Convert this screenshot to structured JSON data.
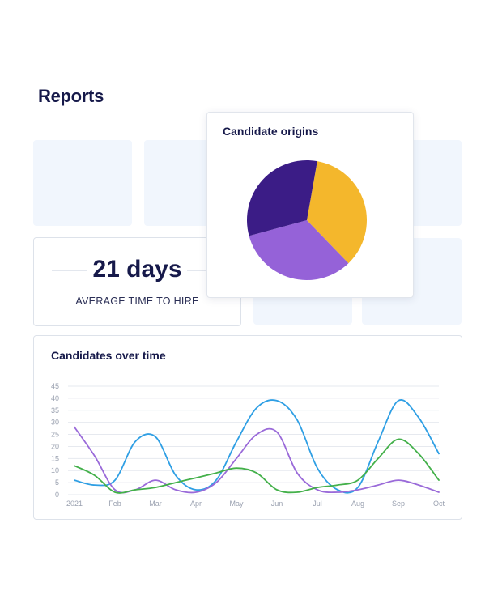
{
  "page": {
    "title": "Reports"
  },
  "stat": {
    "value": "21 days",
    "label": "AVERAGE TIME TO HIRE"
  },
  "origins": {
    "title": "Candidate origins",
    "chart_data": {
      "type": "pie",
      "values": [
        35,
        33,
        32
      ],
      "colors": [
        "#f4b72c",
        "#9562d8",
        "#3b1c86"
      ],
      "start_angle_deg": -80
    }
  },
  "over_time": {
    "title": "Candidates over time",
    "chart_data": {
      "type": "line",
      "categories": [
        "2021",
        "Feb",
        "Mar",
        "Apr",
        "May",
        "Jun",
        "Jul",
        "Aug",
        "Sep",
        "Oct"
      ],
      "y_ticks": [
        0,
        5,
        10,
        15,
        20,
        25,
        30,
        35,
        40,
        45
      ],
      "ylim": [
        0,
        45
      ],
      "grid": true,
      "series": [
        {
          "color": "#2f9fe4",
          "points": [
            [
              0,
              6
            ],
            [
              0.5,
              4
            ],
            [
              1,
              6
            ],
            [
              1.5,
              22
            ],
            [
              2,
              24
            ],
            [
              2.5,
              8
            ],
            [
              3,
              2
            ],
            [
              3.5,
              6
            ],
            [
              4,
              22
            ],
            [
              4.5,
              36
            ],
            [
              5,
              39
            ],
            [
              5.5,
              31
            ],
            [
              6,
              11
            ],
            [
              6.5,
              2
            ],
            [
              7,
              3
            ],
            [
              7.5,
              22
            ],
            [
              8,
              39
            ],
            [
              8.5,
              32
            ],
            [
              9,
              17
            ]
          ]
        },
        {
          "color": "#9a6ad9",
          "points": [
            [
              0,
              28
            ],
            [
              0.5,
              16
            ],
            [
              1,
              2
            ],
            [
              1.5,
              2
            ],
            [
              2,
              6
            ],
            [
              2.5,
              2
            ],
            [
              3,
              1
            ],
            [
              3.5,
              5
            ],
            [
              4,
              15
            ],
            [
              4.5,
              25
            ],
            [
              5,
              26
            ],
            [
              5.5,
              9
            ],
            [
              6,
              2
            ],
            [
              6.5,
              1
            ],
            [
              7,
              2
            ],
            [
              7.5,
              4
            ],
            [
              8,
              6
            ],
            [
              8.5,
              4
            ],
            [
              9,
              1
            ]
          ]
        },
        {
          "color": "#43b04a",
          "points": [
            [
              0,
              12
            ],
            [
              0.5,
              8
            ],
            [
              1,
              1
            ],
            [
              1.5,
              2
            ],
            [
              2,
              3
            ],
            [
              2.5,
              5
            ],
            [
              3,
              7
            ],
            [
              3.5,
              9
            ],
            [
              4,
              11
            ],
            [
              4.5,
              9
            ],
            [
              5,
              2
            ],
            [
              5.5,
              1
            ],
            [
              6,
              3
            ],
            [
              6.5,
              4
            ],
            [
              7,
              6
            ],
            [
              7.5,
              15
            ],
            [
              8,
              23
            ],
            [
              8.5,
              17
            ],
            [
              9,
              6
            ]
          ]
        }
      ]
    }
  }
}
